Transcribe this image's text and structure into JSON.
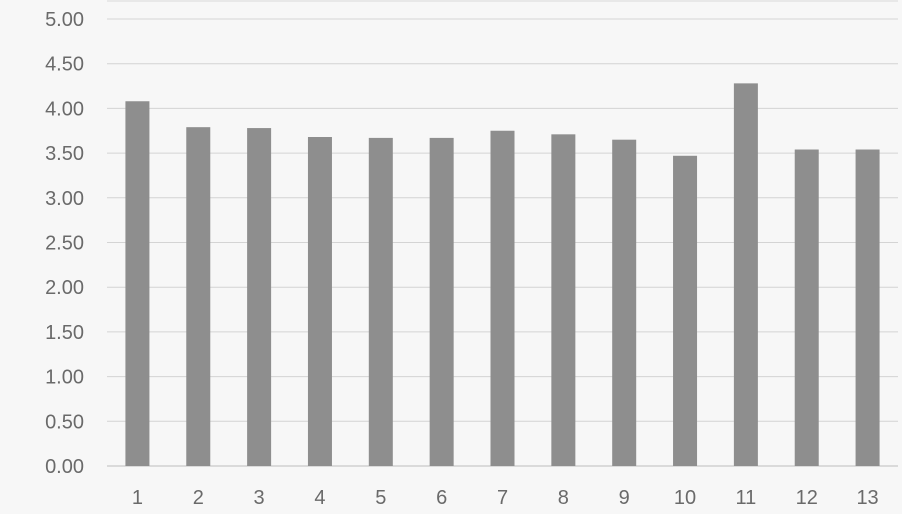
{
  "chart_data": {
    "type": "bar",
    "categories": [
      "1",
      "2",
      "3",
      "4",
      "5",
      "6",
      "7",
      "8",
      "9",
      "10",
      "11",
      "12",
      "13"
    ],
    "values": [
      4.08,
      3.79,
      3.78,
      3.68,
      3.67,
      3.67,
      3.75,
      3.71,
      3.65,
      3.47,
      4.28,
      3.54,
      3.54
    ],
    "title": "",
    "xlabel": "",
    "ylabel": "",
    "ylim": [
      0,
      5
    ],
    "yticks": [
      "0.00",
      "0.50",
      "1.00",
      "1.50",
      "2.00",
      "2.50",
      "3.00",
      "3.50",
      "4.00",
      "4.50",
      "5.00"
    ],
    "grid": true,
    "legend": "none",
    "bar_color": "#8e8e8e"
  }
}
